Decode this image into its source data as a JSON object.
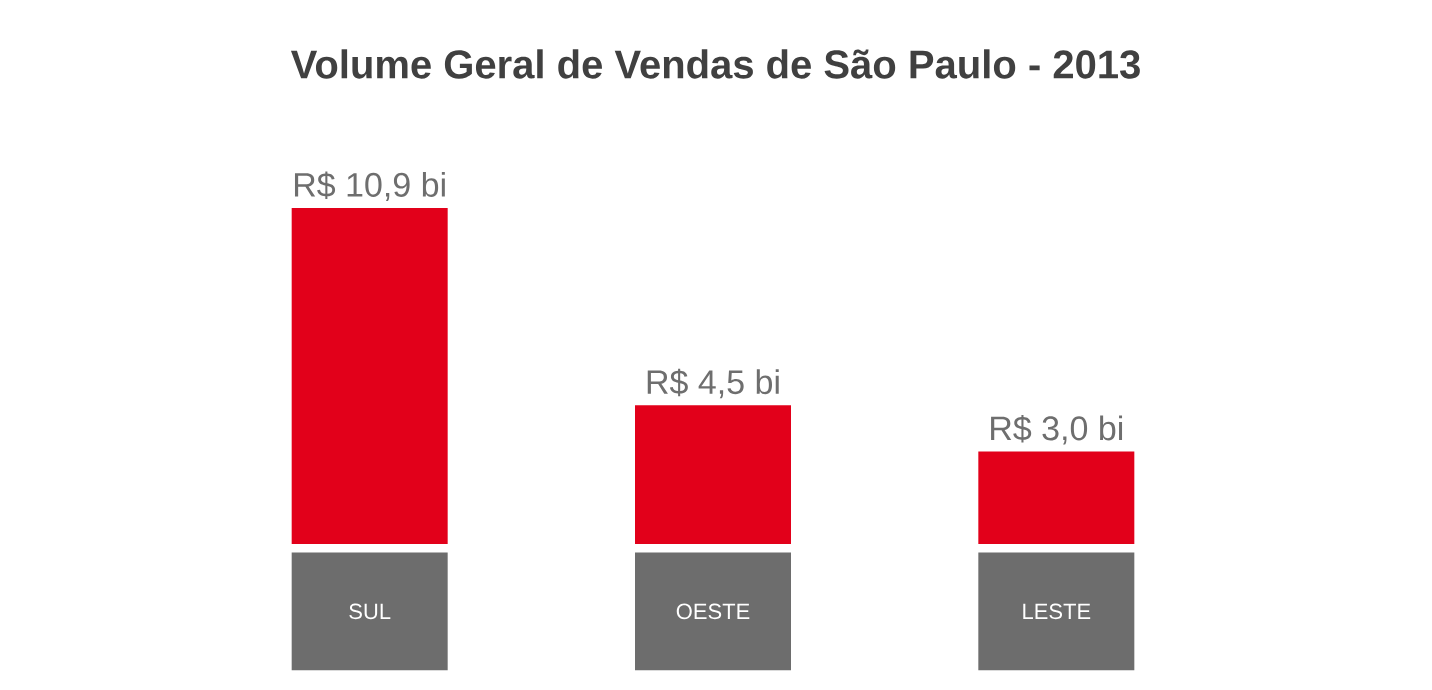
{
  "chart_data": {
    "type": "bar",
    "title": "Volume Geral de Vendas de São Paulo - 2013",
    "categories": [
      "SUL",
      "OESTE",
      "LESTE"
    ],
    "values": [
      10.9,
      4.5,
      3.0
    ],
    "value_labels": [
      "R$ 10,9 bi",
      "R$ 4,5 bi",
      "R$ 3,0 bi"
    ],
    "color": "#e2001a"
  }
}
